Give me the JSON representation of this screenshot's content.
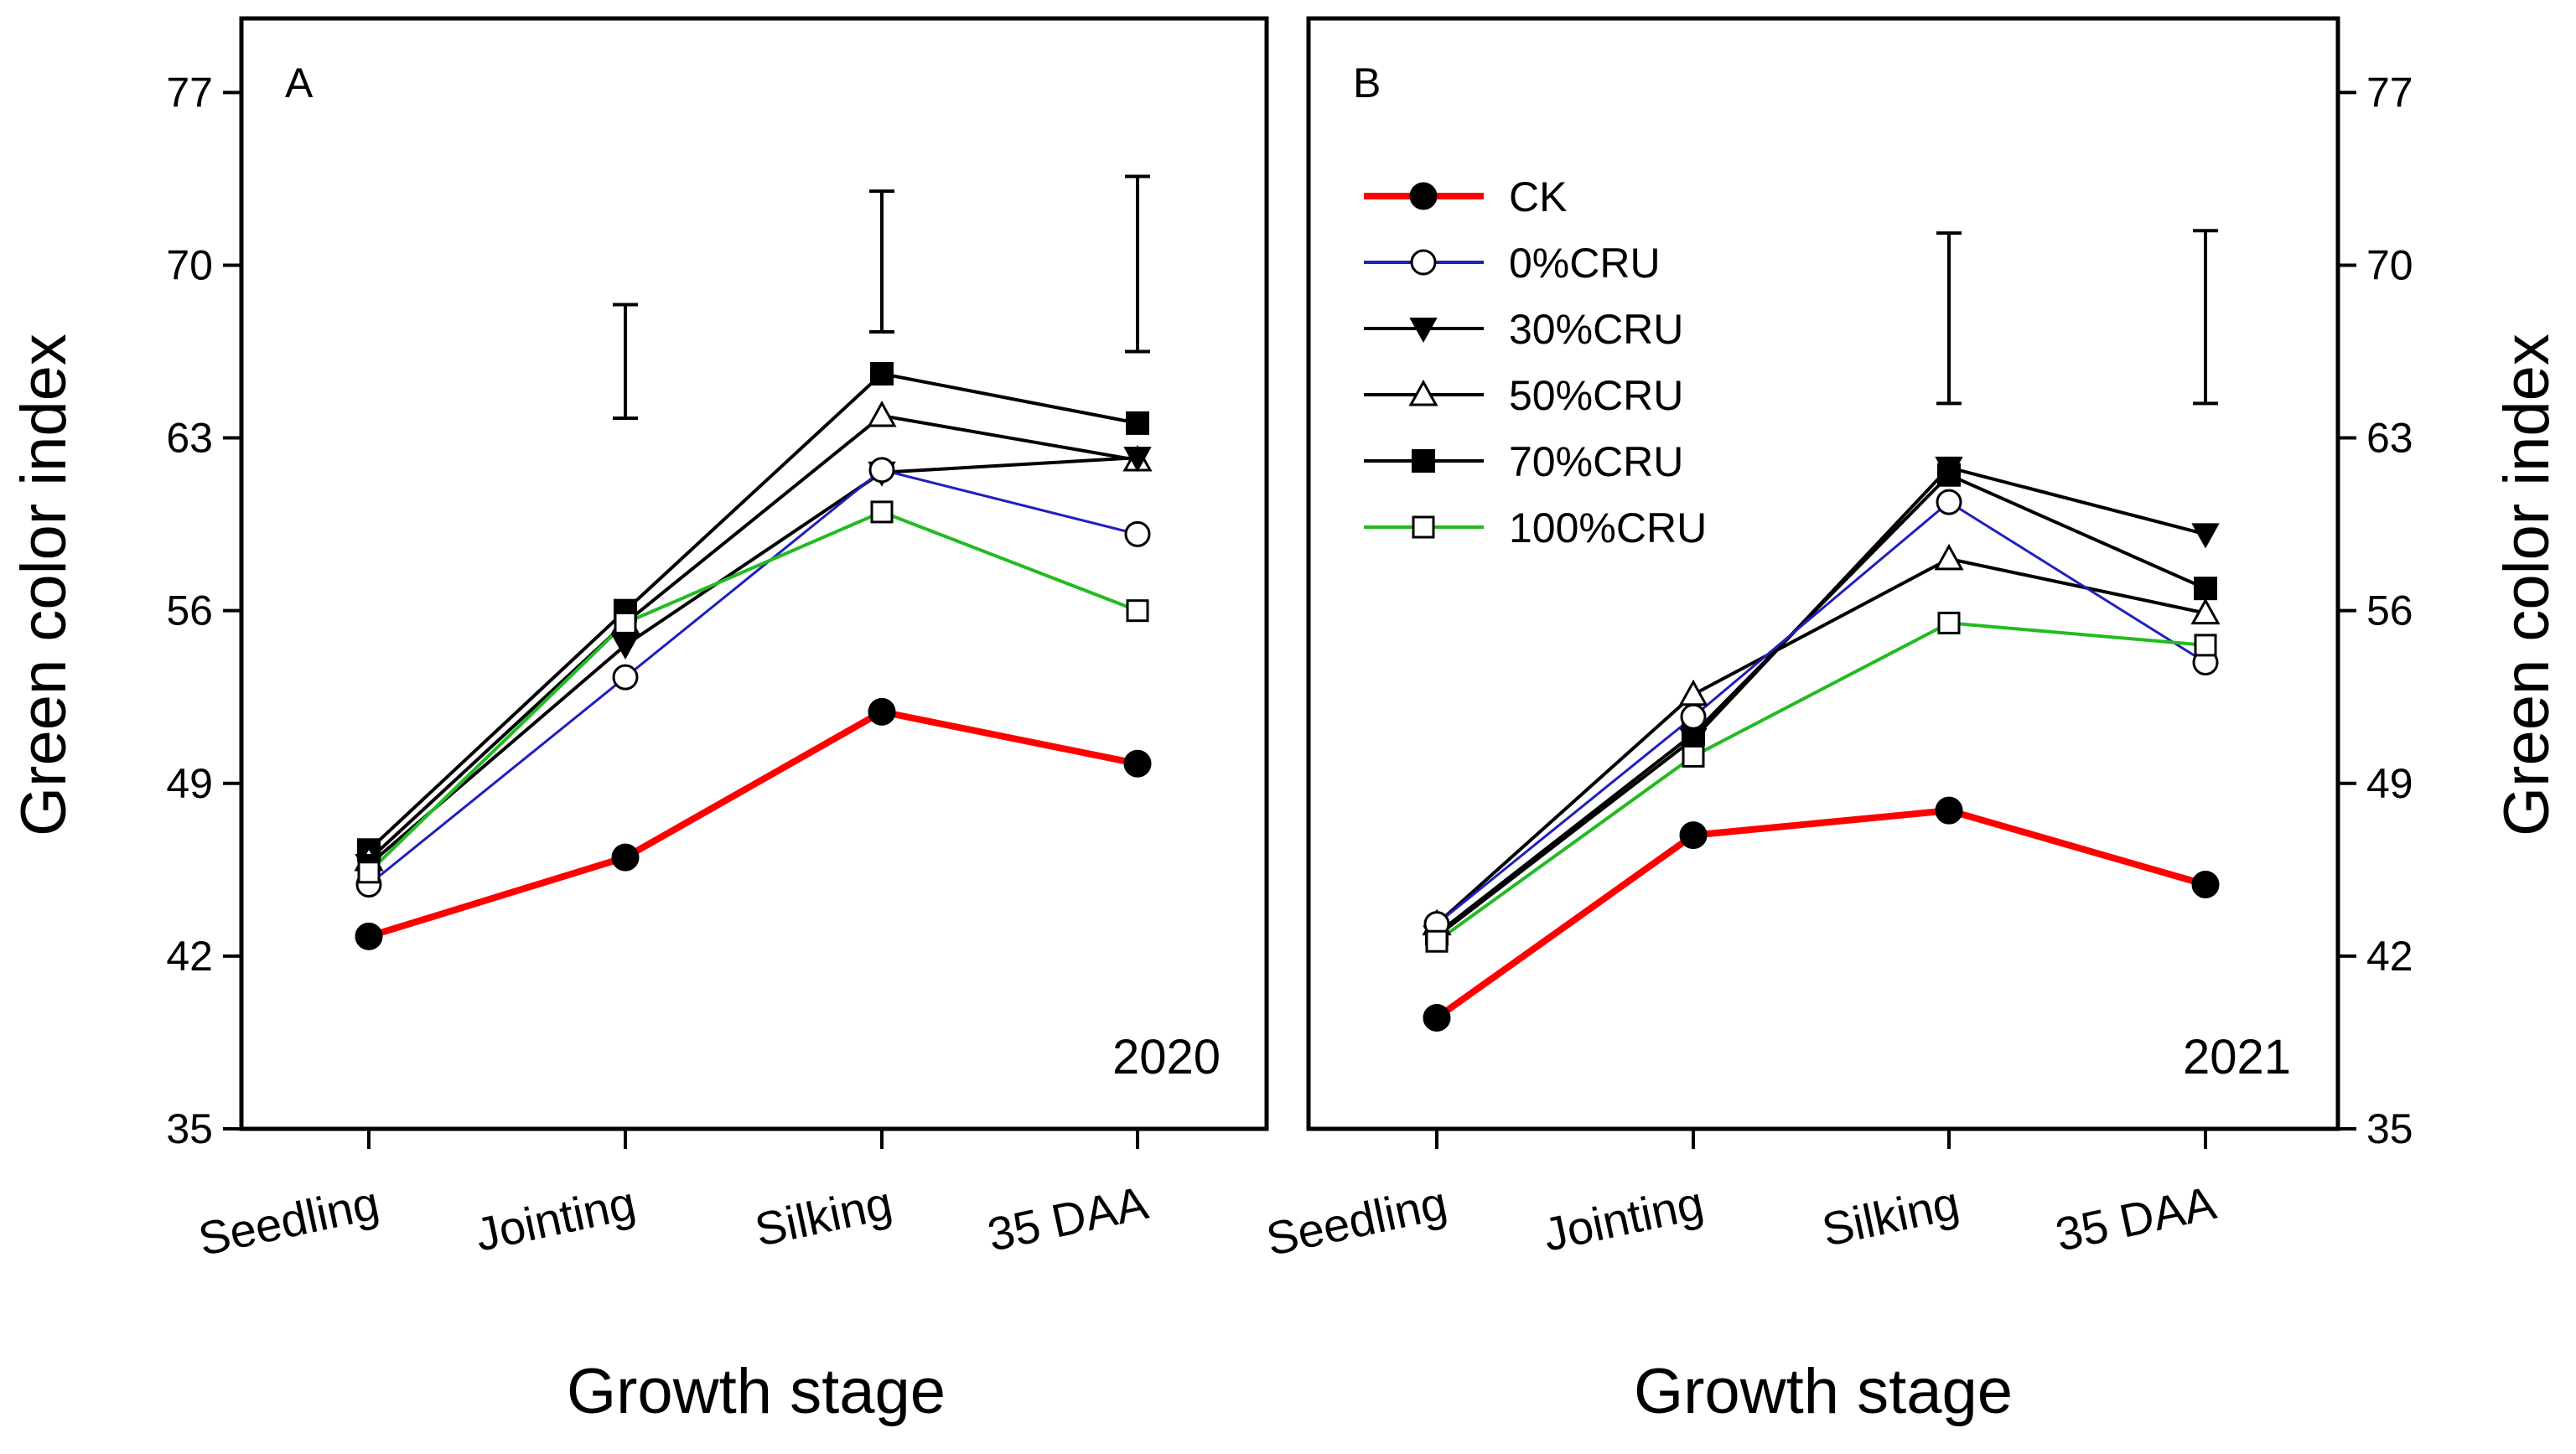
{
  "figure": {
    "ylabel": "Green color index",
    "xlabel": "Growth stage"
  },
  "legend": {
    "entries": [
      {
        "name": "CK",
        "color": "#ff0000",
        "marker": "circle-filled"
      },
      {
        "name": "0%CRU",
        "color": "#1f1fbf",
        "marker": "circle-open"
      },
      {
        "name": "30%CRU",
        "color": "#000000",
        "marker": "triangle-down-filled"
      },
      {
        "name": "50%CRU",
        "color": "#000000",
        "marker": "triangle-up-open"
      },
      {
        "name": "70%CRU",
        "color": "#000000",
        "marker": "square-filled"
      },
      {
        "name": "100%CRU",
        "color": "#22bb22",
        "marker": "square-open"
      }
    ]
  },
  "chart_data": [
    {
      "type": "line",
      "panel": "A",
      "year": "2020",
      "title": "",
      "xlabel": "Growth stage",
      "ylabel": "Green color index",
      "categories": [
        "Seedling",
        "Jointing",
        "Silking",
        "35 DAA"
      ],
      "yticks": [
        35,
        42,
        49,
        56,
        63,
        70,
        77
      ],
      "ylim": [
        35,
        80
      ],
      "grid": false,
      "series": [
        {
          "name": "CK",
          "values": [
            42.8,
            46.0,
            51.9,
            49.8
          ]
        },
        {
          "name": "0%CRU",
          "values": [
            44.9,
            53.3,
            61.7,
            59.1
          ]
        },
        {
          "name": "30%CRU",
          "values": [
            45.7,
            54.6,
            61.6,
            62.2
          ]
        },
        {
          "name": "50%CRU",
          "values": [
            45.9,
            55.5,
            63.9,
            62.1
          ]
        },
        {
          "name": "70%CRU",
          "values": [
            46.3,
            56.0,
            65.6,
            63.6
          ]
        },
        {
          "name": "100%CRU",
          "values": [
            45.4,
            55.5,
            60.0,
            56.0
          ]
        }
      ],
      "error_bars": [
        {
          "category": "Jointing",
          "low": 63.8,
          "high": 68.4
        },
        {
          "category": "Silking",
          "low": 67.3,
          "high": 73.0
        },
        {
          "category": "35 DAA",
          "low": 66.5,
          "high": 73.6
        }
      ]
    },
    {
      "type": "line",
      "panel": "B",
      "year": "2021",
      "title": "",
      "xlabel": "Growth stage",
      "ylabel": "Green color index",
      "categories": [
        "Seedling",
        "Jointing",
        "Silking",
        "35 DAA"
      ],
      "yticks": [
        35,
        42,
        49,
        56,
        63,
        70,
        77
      ],
      "ylim": [
        35,
        80
      ],
      "grid": false,
      "legend_position": "top-left",
      "series": [
        {
          "name": "CK",
          "values": [
            39.5,
            46.9,
            47.9,
            44.9
          ]
        },
        {
          "name": "0%CRU",
          "values": [
            43.3,
            51.7,
            60.4,
            53.9
          ]
        },
        {
          "name": "30%CRU",
          "values": [
            42.8,
            50.8,
            61.8,
            59.1
          ]
        },
        {
          "name": "50%CRU",
          "values": [
            43.3,
            52.6,
            58.1,
            55.9
          ]
        },
        {
          "name": "70%CRU",
          "values": [
            42.9,
            51.0,
            61.5,
            56.9
          ]
        },
        {
          "name": "100%CRU",
          "values": [
            42.6,
            50.1,
            55.5,
            54.6
          ]
        }
      ],
      "error_bars": [
        {
          "category": "Silking",
          "low": 64.4,
          "high": 71.3
        },
        {
          "category": "35 DAA",
          "low": 64.4,
          "high": 71.4
        }
      ]
    }
  ]
}
